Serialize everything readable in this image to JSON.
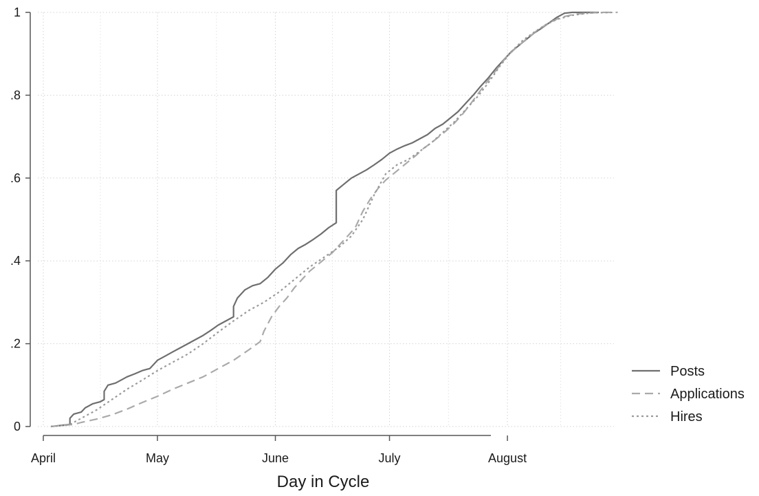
{
  "chart_data": {
    "type": "line",
    "xlabel": "Day in Cycle",
    "ylabel": "",
    "x_ticks": [
      {
        "label": "April",
        "value": 0
      },
      {
        "label": "May",
        "value": 30
      },
      {
        "label": "June",
        "value": 61
      },
      {
        "label": "July",
        "value": 91
      },
      {
        "label": "August",
        "value": 122
      }
    ],
    "y_ticks": [
      {
        "label": "0",
        "value": 0
      },
      {
        "label": ".2",
        "value": 0.2
      },
      {
        "label": ".4",
        "value": 0.4
      },
      {
        "label": ".6",
        "value": 0.6
      },
      {
        "label": ".8",
        "value": 0.8
      },
      {
        "label": "1",
        "value": 1
      }
    ],
    "xlim": [
      0,
      150
    ],
    "ylim": [
      0,
      1
    ],
    "grid": true,
    "legend_position": "bottom-right",
    "series": [
      {
        "name": "Posts",
        "color": "#6e6e6e",
        "dash": "solid",
        "points": [
          [
            2,
            0
          ],
          [
            7,
            0.005
          ],
          [
            7,
            0.02
          ],
          [
            8,
            0.03
          ],
          [
            10,
            0.035
          ],
          [
            11,
            0.045
          ],
          [
            13,
            0.055
          ],
          [
            15,
            0.06
          ],
          [
            16,
            0.065
          ],
          [
            16,
            0.085
          ],
          [
            17,
            0.1
          ],
          [
            19,
            0.105
          ],
          [
            20,
            0.11
          ],
          [
            22,
            0.12
          ],
          [
            24,
            0.127
          ],
          [
            26,
            0.135
          ],
          [
            28,
            0.14
          ],
          [
            29,
            0.15
          ],
          [
            30,
            0.16
          ],
          [
            32,
            0.17
          ],
          [
            34,
            0.18
          ],
          [
            36,
            0.19
          ],
          [
            38,
            0.2
          ],
          [
            40,
            0.21
          ],
          [
            42,
            0.22
          ],
          [
            44,
            0.232
          ],
          [
            46,
            0.245
          ],
          [
            48,
            0.255
          ],
          [
            50,
            0.265
          ],
          [
            50,
            0.29
          ],
          [
            51,
            0.31
          ],
          [
            53,
            0.33
          ],
          [
            55,
            0.34
          ],
          [
            57,
            0.345
          ],
          [
            59,
            0.36
          ],
          [
            61,
            0.38
          ],
          [
            63,
            0.395
          ],
          [
            65,
            0.415
          ],
          [
            67,
            0.43
          ],
          [
            69,
            0.44
          ],
          [
            71,
            0.452
          ],
          [
            73,
            0.465
          ],
          [
            75,
            0.48
          ],
          [
            77,
            0.492
          ],
          [
            77,
            0.57
          ],
          [
            79,
            0.585
          ],
          [
            81,
            0.6
          ],
          [
            83,
            0.61
          ],
          [
            85,
            0.62
          ],
          [
            87,
            0.632
          ],
          [
            89,
            0.645
          ],
          [
            91,
            0.66
          ],
          [
            93,
            0.67
          ],
          [
            95,
            0.678
          ],
          [
            97,
            0.685
          ],
          [
            99,
            0.695
          ],
          [
            101,
            0.705
          ],
          [
            103,
            0.72
          ],
          [
            105,
            0.73
          ],
          [
            107,
            0.745
          ],
          [
            109,
            0.76
          ],
          [
            111,
            0.78
          ],
          [
            113,
            0.8
          ],
          [
            115,
            0.822
          ],
          [
            117,
            0.842
          ],
          [
            119,
            0.865
          ],
          [
            121,
            0.885
          ],
          [
            123,
            0.905
          ],
          [
            125,
            0.92
          ],
          [
            127,
            0.935
          ],
          [
            129,
            0.95
          ],
          [
            131,
            0.962
          ],
          [
            133,
            0.975
          ],
          [
            135,
            0.988
          ],
          [
            137,
            0.998
          ],
          [
            139,
            1
          ],
          [
            146,
            1
          ]
        ]
      },
      {
        "name": "Applications",
        "color": "#aaaaaa",
        "dash": "12,7",
        "points": [
          [
            2,
            0
          ],
          [
            8,
            0.005
          ],
          [
            10,
            0.01
          ],
          [
            14,
            0.018
          ],
          [
            18,
            0.028
          ],
          [
            22,
            0.042
          ],
          [
            26,
            0.058
          ],
          [
            30,
            0.073
          ],
          [
            34,
            0.09
          ],
          [
            38,
            0.105
          ],
          [
            42,
            0.12
          ],
          [
            46,
            0.14
          ],
          [
            50,
            0.16
          ],
          [
            54,
            0.185
          ],
          [
            57,
            0.205
          ],
          [
            58,
            0.23
          ],
          [
            60,
            0.265
          ],
          [
            62,
            0.29
          ],
          [
            64,
            0.31
          ],
          [
            66,
            0.335
          ],
          [
            68,
            0.355
          ],
          [
            70,
            0.375
          ],
          [
            72,
            0.39
          ],
          [
            74,
            0.405
          ],
          [
            76,
            0.42
          ],
          [
            78,
            0.44
          ],
          [
            80,
            0.46
          ],
          [
            82,
            0.48
          ],
          [
            84,
            0.52
          ],
          [
            86,
            0.55
          ],
          [
            88,
            0.575
          ],
          [
            90,
            0.595
          ],
          [
            92,
            0.61
          ],
          [
            94,
            0.625
          ],
          [
            96,
            0.64
          ],
          [
            98,
            0.655
          ],
          [
            100,
            0.672
          ],
          [
            102,
            0.685
          ],
          [
            104,
            0.7
          ],
          [
            106,
            0.715
          ],
          [
            108,
            0.732
          ],
          [
            110,
            0.752
          ],
          [
            112,
            0.775
          ],
          [
            114,
            0.8
          ],
          [
            116,
            0.825
          ],
          [
            118,
            0.848
          ],
          [
            120,
            0.872
          ],
          [
            122,
            0.895
          ],
          [
            124,
            0.912
          ],
          [
            126,
            0.928
          ],
          [
            128,
            0.943
          ],
          [
            130,
            0.958
          ],
          [
            133,
            0.975
          ],
          [
            136,
            0.988
          ],
          [
            140,
            0.996
          ],
          [
            146,
            1
          ],
          [
            151,
            1
          ]
        ]
      },
      {
        "name": "Hires",
        "color": "#9a9a9a",
        "dash": "3,4",
        "points": [
          [
            2,
            0
          ],
          [
            7,
            0.005
          ],
          [
            10,
            0.02
          ],
          [
            14,
            0.04
          ],
          [
            18,
            0.065
          ],
          [
            22,
            0.09
          ],
          [
            26,
            0.112
          ],
          [
            30,
            0.135
          ],
          [
            34,
            0.155
          ],
          [
            38,
            0.175
          ],
          [
            42,
            0.2
          ],
          [
            46,
            0.228
          ],
          [
            50,
            0.255
          ],
          [
            54,
            0.28
          ],
          [
            58,
            0.3
          ],
          [
            62,
            0.325
          ],
          [
            66,
            0.355
          ],
          [
            70,
            0.385
          ],
          [
            74,
            0.41
          ],
          [
            78,
            0.435
          ],
          [
            81,
            0.46
          ],
          [
            84,
            0.5
          ],
          [
            87,
            0.56
          ],
          [
            90,
            0.61
          ],
          [
            93,
            0.632
          ],
          [
            96,
            0.645
          ],
          [
            99,
            0.665
          ],
          [
            102,
            0.685
          ],
          [
            105,
            0.71
          ],
          [
            108,
            0.735
          ],
          [
            111,
            0.765
          ],
          [
            114,
            0.795
          ],
          [
            117,
            0.83
          ],
          [
            120,
            0.87
          ],
          [
            123,
            0.905
          ],
          [
            126,
            0.932
          ],
          [
            129,
            0.952
          ],
          [
            132,
            0.97
          ],
          [
            135,
            0.983
          ],
          [
            139,
            0.993
          ],
          [
            144,
            0.999
          ],
          [
            150,
            1
          ]
        ]
      }
    ]
  }
}
